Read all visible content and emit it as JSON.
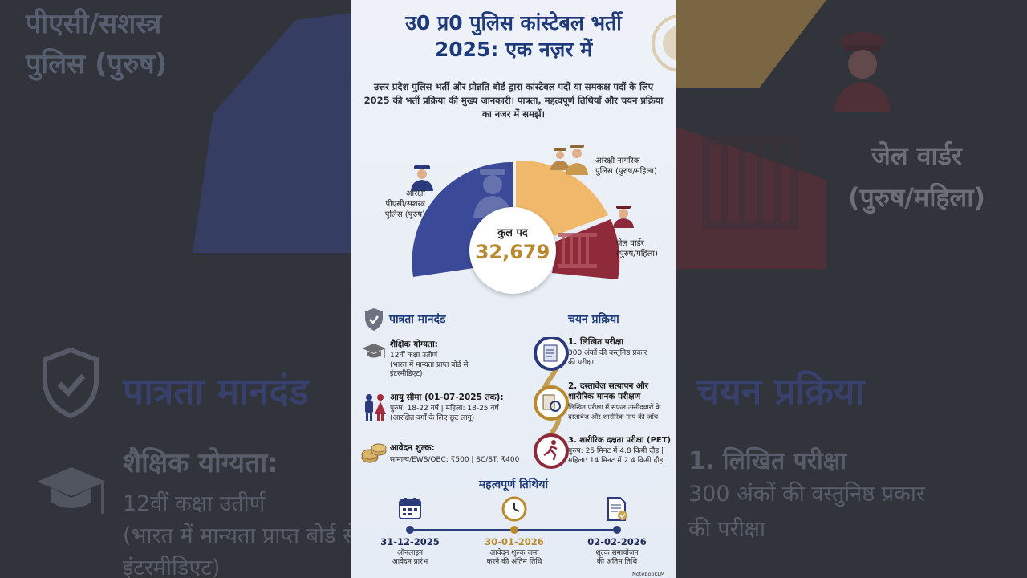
{
  "background": {
    "left_heading_1": "पीएसी/सशस्त्र",
    "left_heading_2": "पुलिस (पुरुष)",
    "right_heading_1": "जेल वार्डर",
    "right_heading_2": "(पुरुष/महिला)",
    "eligibility_heading": "पात्रता मानदंड",
    "selection_heading": "चयन प्रक्रिया",
    "edu_heading": "शैक्षिक योग्यता:",
    "edu_line_1": "12वीं कक्षा उतीर्ण",
    "edu_line_2": "(भारत में मान्यता प्राप्त बोर्ड से",
    "edu_line_3": "इंटरमीडिएट)",
    "exam_heading": "1. लिखित परीक्षा",
    "exam_line_1": "300 अंकों की वस्तुनिष्ठ प्रकार",
    "exam_line_2": "की परीक्षा"
  },
  "header": {
    "title_line_1": "उ0 प्र0 पुलिस कांस्टेबल भर्ती",
    "title_line_2": "2025: एक नज़र में",
    "subtitle": "उत्तर प्रदेश पुलिस भर्ती और प्रोन्नति बोर्ड द्वारा कांस्टेबल पदों या समकक्ष पदों के लिए 2025 की भर्ती प्रक्रिया की मुख्य जानकारी। पात्रता, महत्वपूर्ण तिथियाँ और चयन प्रक्रिया का नजर में समझें।"
  },
  "chart_data": {
    "type": "pie",
    "total_label": "कुल पद",
    "total_value": "32,679",
    "slices": [
      {
        "name": "आरक्षी पीएसी/सशस्त्र पुलिस (पुरुष)",
        "color": "#3b4a98"
      },
      {
        "name": "आरक्षी नागरिक पुलिस (पुरुष/महिला)",
        "color": "#f0b86a"
      },
      {
        "name": "जेल वार्डर (पुरुष/महिला)",
        "color": "#8e2a3a"
      }
    ]
  },
  "chart_labels": {
    "pac_1": "आरक्षी",
    "pac_2": "पीएसी/सशस्त्र",
    "pac_3": "पुलिस (पुरुष)",
    "civil_1": "आरक्षी नागरिक",
    "civil_2": "पुलिस (पुरुष/महिला)",
    "jail_1": "जेल वार्डर",
    "jail_2": "(पुरुष/महिला)"
  },
  "eligibility": {
    "heading": "पात्रता मानदंड",
    "education": {
      "title": "शैक्षिक योग्यता:",
      "line_1": "12वीं कक्षा उतीर्ण",
      "line_2": "(भारत में मान्यता प्राप्त बोर्ड से",
      "line_3": "इंटरमीडिएट)"
    },
    "age": {
      "title": "आयु सीमा (01-07-2025 तक):",
      "line_1": "पुरुष: 18-22 वर्ष | महिला: 18-25 वर्ष",
      "line_2": "(आरक्षित वर्गों के लिए छूट लागू)"
    },
    "fee": {
      "title": "आवेदन शुल्क:",
      "line_1": "सामान्य/EWS/OBC: ₹500 | SC/ST: ₹400"
    }
  },
  "selection": {
    "heading": "चयन प्रक्रिया",
    "steps": [
      {
        "title": "1. लिखित परीक्षा",
        "line_1": "300 अंकों की वस्तुनिष्ठ प्रकार",
        "line_2": "की परीक्षा"
      },
      {
        "title": "2. दस्तावेज़ सत्यापन और",
        "title_2": "शारीरिक मानक परीक्षण",
        "line_1": "लिखित परीक्षा में सफल उम्मीदवारों के",
        "line_2": "दस्तावेज और शारीरिक माप की जाँच"
      },
      {
        "title": "3. शारीरिक दक्षता परीक्षा (PET)",
        "line_1": "पुरुष: 25 मिनट में 4.8 किमी दौड़ |",
        "line_2": "महिला: 14 मिनट में 2.4 किमी दौड़"
      }
    ]
  },
  "dates": {
    "heading": "महत्वपूर्ण तिथियां",
    "items": [
      {
        "date": "31-12-2025",
        "line_1": "ऑनलाइन",
        "line_2": "आवेदन प्रारंभ",
        "color": "#1c2a55"
      },
      {
        "date": "30-01-2026",
        "line_1": "आवेदन शुल्क जमा",
        "line_2": "करने की अंतिम तिथि",
        "color": "#b8892e"
      },
      {
        "date": "02-02-2026",
        "line_1": "शुल्क समायोजन",
        "line_2": "की अंतिम तिथि",
        "color": "#1c2a55"
      }
    ]
  },
  "brand": "NotebookLM"
}
